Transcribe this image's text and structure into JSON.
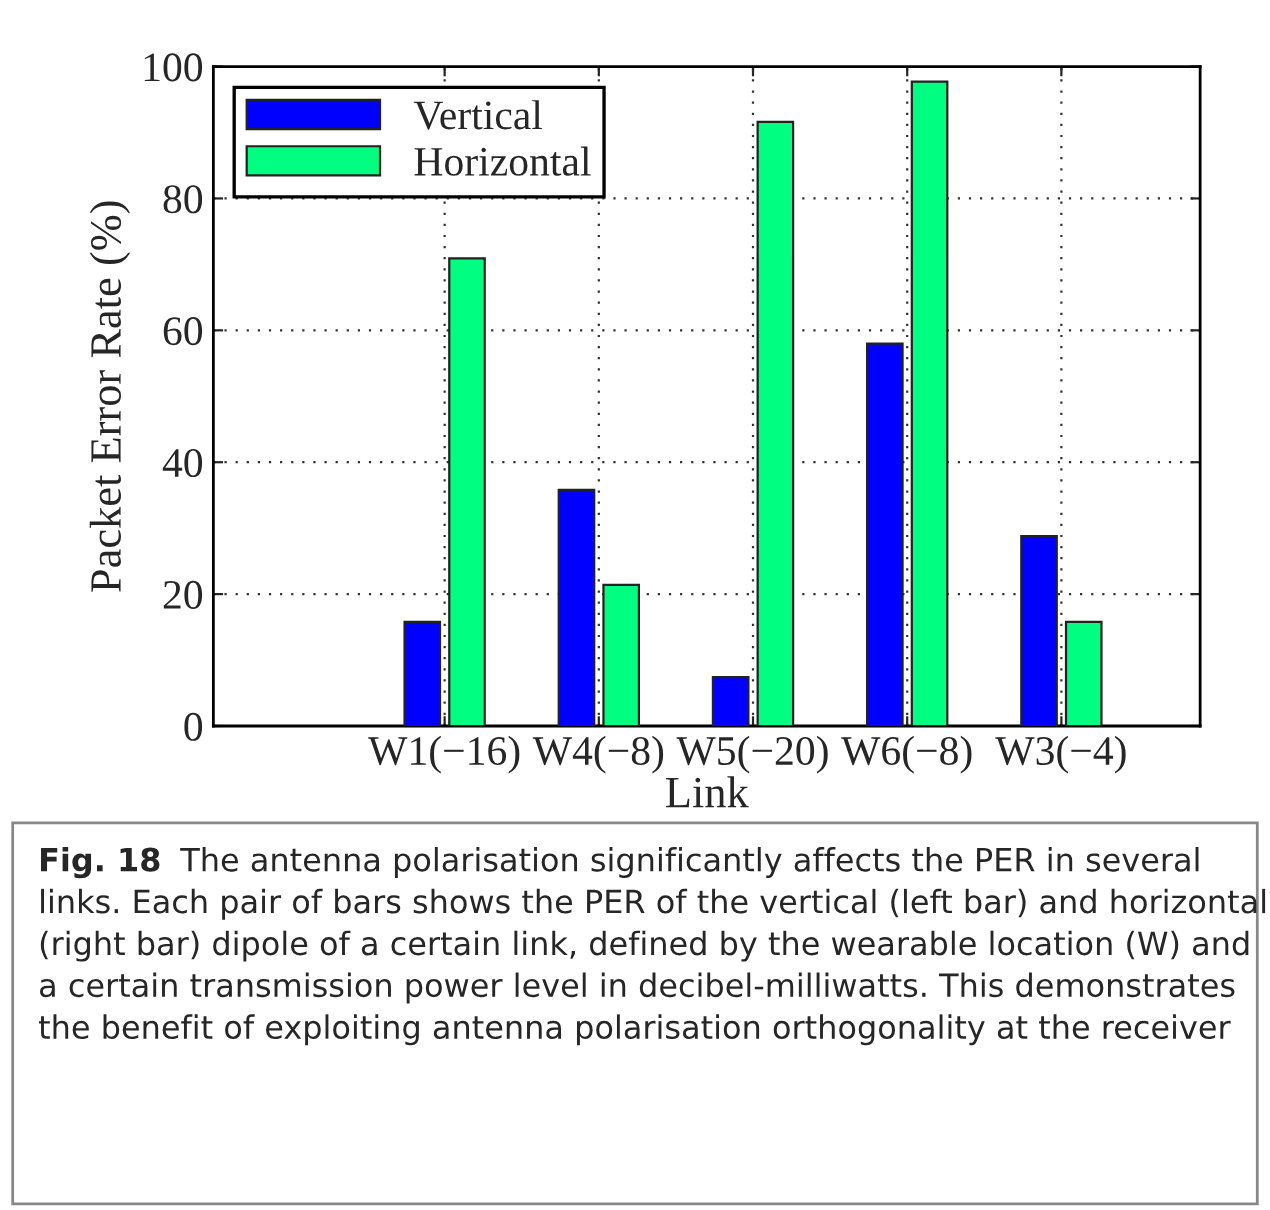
{
  "chart_data": {
    "type": "bar",
    "xlabel": "Link",
    "ylabel": "Packet Error Rate (%)",
    "categories": [
      "W1(−16)",
      "W4(−8)",
      "W5(−20)",
      "W6(−8)",
      "W3(−4)"
    ],
    "series": [
      {
        "name": "Vertical",
        "color": "#0000ff",
        "values": [
          15.8,
          35.8,
          7.4,
          58.0,
          28.8
        ]
      },
      {
        "name": "Horizontal",
        "color": "#00ff80",
        "values": [
          70.9,
          21.4,
          91.6,
          97.7,
          15.8
        ]
      }
    ],
    "ylim": [
      0,
      100
    ],
    "yticks": [
      0,
      20,
      40,
      60,
      80,
      100
    ],
    "grid": true,
    "legend": "top left",
    "annotations": [
      "Fig. 18",
      "The antenna polarisation significantly affects the PER in several links. Each pair of bars shows the PER of the vertical (left bar) and horizontal (right bar) dipole of a certain link, defined by the wearable location (W) and a certain transmission power level in decibel-milliwatts. This demonstrates the benefit of exploiting antenna polarisation orthogonality at the receiver"
    ]
  }
}
